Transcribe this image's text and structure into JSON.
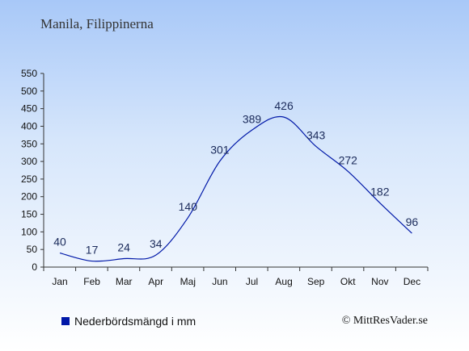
{
  "title": "Manila, Filippinerna",
  "legend_label": "Nederbördsmängd i mm",
  "credit": "© MittResVader.se",
  "colors": {
    "series": "#0018a8",
    "label": "#1a2a5a"
  },
  "chart_data": {
    "type": "line",
    "categories": [
      "Jan",
      "Feb",
      "Mar",
      "Apr",
      "Maj",
      "Jun",
      "Jul",
      "Aug",
      "Sep",
      "Okt",
      "Nov",
      "Dec"
    ],
    "series": [
      {
        "name": "Nederbördsmängd i mm",
        "values": [
          40,
          17,
          24,
          34,
          140,
          301,
          389,
          426,
          343,
          272,
          182,
          96
        ]
      }
    ],
    "ylim": [
      0,
      550
    ],
    "yticks": [
      0,
      50,
      100,
      150,
      200,
      250,
      300,
      350,
      400,
      450,
      500,
      550
    ],
    "grid": false,
    "legend_position": "bottom-left"
  }
}
